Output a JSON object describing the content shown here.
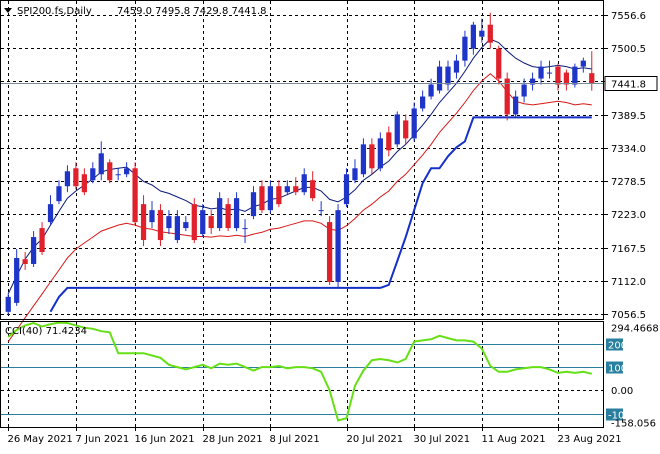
{
  "header": {
    "symbol": "SPI200.fs,Daily",
    "ohlc": "7459.0 7495.8 7429.8 7441.8"
  },
  "main_axis": {
    "ticks": [
      7556.6,
      7500.5,
      7445.5,
      7389.5,
      7334.0,
      7278.5,
      7223.0,
      7167.5,
      7112.0,
      7056.5
    ],
    "tick_labels": [
      "7556.6",
      "7500.5",
      "7445.5",
      "7389.5",
      "7334.0",
      "7278.5",
      "7223.0",
      "7167.5",
      "7112.0",
      "7056.5"
    ],
    "current_price": 7441.8,
    "current_price_label": "7441.8",
    "ylim": [
      7048,
      7578
    ]
  },
  "x_axis": {
    "tick_labels": [
      "26 May 2021",
      "7 Jun 2021",
      "16 Jun 2021",
      "28 Jun 2021",
      "8 Jul 2021",
      "20 Jul 2021",
      "30 Jul 2021",
      "11 Aug 2021",
      "23 Aug 2021"
    ],
    "tick_bar_index": [
      0,
      8,
      15,
      23,
      31,
      40,
      48,
      56,
      65
    ]
  },
  "indicator": {
    "label": "CCI(40) 71.4234",
    "ticks": [
      294.4668,
      200,
      100,
      0.0,
      -100,
      -158.056
    ],
    "tick_labels": [
      "294.4668",
      "200",
      "100",
      "0.00",
      "-100",
      "-158.056"
    ],
    "highlight_levels": [
      200,
      100,
      -100
    ],
    "ylim": [
      -158.056,
      294.4668
    ]
  },
  "colors": {
    "bull": "#1f35c8",
    "bear": "#e0202a",
    "upper_line": "#0a1a7a",
    "lower_line": "#d81818",
    "support_line": "#1530c8",
    "cci_line": "#66e016",
    "cci_highlight": "#2a7f9f",
    "grid": "#000000"
  },
  "chart_data": {
    "type": "candlestick",
    "x_dates": [
      "2021-05-26",
      "2021-05-27",
      "2021-05-28",
      "2021-05-31",
      "2021-06-01",
      "2021-06-02",
      "2021-06-03",
      "2021-06-04",
      "2021-06-07",
      "2021-06-08",
      "2021-06-09",
      "2021-06-10",
      "2021-06-11",
      "2021-06-14",
      "2021-06-15",
      "2021-06-16",
      "2021-06-17",
      "2021-06-18",
      "2021-06-21",
      "2021-06-22",
      "2021-06-23",
      "2021-06-24",
      "2021-06-25",
      "2021-06-28",
      "2021-06-29",
      "2021-06-30",
      "2021-07-01",
      "2021-07-02",
      "2021-07-05",
      "2021-07-06",
      "2021-07-07",
      "2021-07-08",
      "2021-07-09",
      "2021-07-12",
      "2021-07-13",
      "2021-07-14",
      "2021-07-15",
      "2021-07-16",
      "2021-07-19",
      "2021-07-20",
      "2021-07-21",
      "2021-07-22",
      "2021-07-23",
      "2021-07-26",
      "2021-07-27",
      "2021-07-28",
      "2021-07-29",
      "2021-07-30",
      "2021-08-02",
      "2021-08-03",
      "2021-08-04",
      "2021-08-05",
      "2021-08-06",
      "2021-08-09",
      "2021-08-10",
      "2021-08-11",
      "2021-08-12",
      "2021-08-13",
      "2021-08-16",
      "2021-08-17",
      "2021-08-18",
      "2021-08-19",
      "2021-08-20",
      "2021-08-23",
      "2021-08-24",
      "2021-08-25",
      "2021-08-26",
      "2021-08-27",
      "2021-08-30",
      "2021-08-31"
    ],
    "open": [
      7060,
      7075,
      7148,
      7140,
      7200,
      7210,
      7245,
      7270,
      7300,
      7290,
      7280,
      7290,
      7310,
      7290,
      7290,
      7300,
      7240,
      7210,
      7230,
      7200,
      7180,
      7200,
      7240,
      7190,
      7220,
      7200,
      7240,
      7200,
      7200,
      7220,
      7270,
      7230,
      7270,
      7260,
      7270,
      7260,
      7280,
      7230,
      7210,
      7110,
      7240,
      7280,
      7290,
      7340,
      7300,
      7360,
      7340,
      7380,
      7350,
      7400,
      7420,
      7430,
      7440,
      7460,
      7480,
      7500,
      7520,
      7540,
      7500,
      7450,
      7390,
      7420,
      7440,
      7450,
      7460,
      7470,
      7460,
      7440,
      7470,
      7459
    ],
    "close": [
      7085,
      7150,
      7140,
      7185,
      7160,
      7240,
      7270,
      7295,
      7270,
      7260,
      7300,
      7325,
      7280,
      7290,
      7300,
      7210,
      7180,
      7230,
      7180,
      7220,
      7220,
      7210,
      7180,
      7230,
      7200,
      7250,
      7200,
      7250,
      7200,
      7260,
      7230,
      7270,
      7240,
      7270,
      7260,
      7290,
      7250,
      7230,
      7110,
      7230,
      7290,
      7300,
      7340,
      7300,
      7350,
      7330,
      7390,
      7350,
      7400,
      7420,
      7440,
      7470,
      7470,
      7480,
      7520,
      7540,
      7530,
      7510,
      7450,
      7390,
      7420,
      7440,
      7450,
      7470,
      7460,
      7440,
      7440,
      7470,
      7480,
      7441.8
    ],
    "high": [
      7090,
      7165,
      7160,
      7195,
      7210,
      7255,
      7280,
      7305,
      7310,
      7300,
      7310,
      7345,
      7315,
      7300,
      7310,
      7310,
      7255,
      7245,
      7240,
      7230,
      7230,
      7220,
      7250,
      7240,
      7230,
      7260,
      7250,
      7260,
      7215,
      7270,
      7280,
      7280,
      7280,
      7280,
      7285,
      7300,
      7295,
      7245,
      7220,
      7240,
      7300,
      7315,
      7350,
      7350,
      7360,
      7370,
      7395,
      7390,
      7410,
      7430,
      7450,
      7480,
      7480,
      7490,
      7530,
      7545,
      7550,
      7560,
      7505,
      7460,
      7430,
      7450,
      7460,
      7480,
      7480,
      7475,
      7465,
      7475,
      7485,
      7495.8
    ],
    "low": [
      7055,
      7070,
      7130,
      7135,
      7155,
      7205,
      7240,
      7260,
      7265,
      7255,
      7275,
      7280,
      7275,
      7280,
      7285,
      7205,
      7170,
      7200,
      7170,
      7190,
      7175,
      7195,
      7175,
      7185,
      7190,
      7195,
      7195,
      7195,
      7175,
      7215,
      7225,
      7225,
      7235,
      7255,
      7255,
      7255,
      7245,
      7220,
      7105,
      7100,
      7235,
      7275,
      7285,
      7290,
      7295,
      7320,
      7335,
      7340,
      7345,
      7395,
      7415,
      7425,
      7430,
      7450,
      7470,
      7490,
      7510,
      7500,
      7440,
      7380,
      7385,
      7410,
      7430,
      7440,
      7450,
      7430,
      7430,
      7435,
      7460,
      7429.8
    ],
    "upper_band": [
      7090,
      7120,
      7148,
      7168,
      7182,
      7205,
      7228,
      7250,
      7262,
      7272,
      7282,
      7294,
      7298,
      7300,
      7302,
      7290,
      7278,
      7272,
      7262,
      7258,
      7252,
      7246,
      7238,
      7236,
      7232,
      7234,
      7230,
      7232,
      7228,
      7236,
      7240,
      7248,
      7250,
      7256,
      7262,
      7268,
      7268,
      7262,
      7248,
      7244,
      7252,
      7264,
      7280,
      7290,
      7302,
      7312,
      7328,
      7340,
      7356,
      7372,
      7390,
      7410,
      7426,
      7442,
      7462,
      7484,
      7502,
      7516,
      7510,
      7496,
      7484,
      7476,
      7470,
      7468,
      7470,
      7472,
      7470,
      7466,
      7468,
      7466
    ],
    "lower_band": [
      7010,
      7030,
      7050,
      7070,
      7090,
      7110,
      7130,
      7150,
      7165,
      7175,
      7185,
      7195,
      7200,
      7205,
      7208,
      7205,
      7200,
      7198,
      7194,
      7192,
      7190,
      7188,
      7186,
      7186,
      7185,
      7187,
      7186,
      7188,
      7186,
      7190,
      7193,
      7198,
      7200,
      7204,
      7208,
      7212,
      7212,
      7208,
      7198,
      7196,
      7204,
      7216,
      7230,
      7240,
      7252,
      7262,
      7278,
      7290,
      7306,
      7322,
      7340,
      7360,
      7376,
      7392,
      7410,
      7430,
      7446,
      7458,
      7446,
      7428,
      7412,
      7408,
      7406,
      7408,
      7410,
      7412,
      7410,
      7406,
      7408,
      7406
    ],
    "support_line": [
      6980,
      6990,
      7000,
      7010,
      7030,
      7060,
      7085,
      7100,
      7100,
      7100,
      7100,
      7100,
      7100,
      7100,
      7100,
      7100,
      7100,
      7100,
      7100,
      7100,
      7100,
      7100,
      7100,
      7100,
      7100,
      7100,
      7100,
      7100,
      7100,
      7100,
      7100,
      7100,
      7100,
      7100,
      7100,
      7100,
      7100,
      7100,
      7100,
      7100,
      7100,
      7100,
      7100,
      7100,
      7100,
      7105,
      7145,
      7185,
      7230,
      7275,
      7300,
      7300,
      7320,
      7335,
      7345,
      7385,
      7385,
      7385,
      7385,
      7385,
      7385,
      7385,
      7385,
      7385,
      7385,
      7385,
      7385,
      7385,
      7385,
      7385
    ],
    "cci": [
      230,
      260,
      280,
      290,
      275,
      285,
      292,
      290,
      280,
      270,
      265,
      255,
      250,
      160,
      160,
      160,
      160,
      150,
      140,
      110,
      100,
      90,
      100,
      110,
      95,
      115,
      110,
      115,
      100,
      85,
      100,
      100,
      105,
      95,
      100,
      100,
      95,
      80,
      0,
      -130,
      -120,
      20,
      85,
      130,
      135,
      130,
      120,
      135,
      210,
      215,
      220,
      235,
      225,
      215,
      215,
      210,
      180,
      105,
      80,
      80,
      90,
      95,
      100,
      100,
      90,
      75,
      80,
      75,
      80,
      71.4234
    ]
  }
}
